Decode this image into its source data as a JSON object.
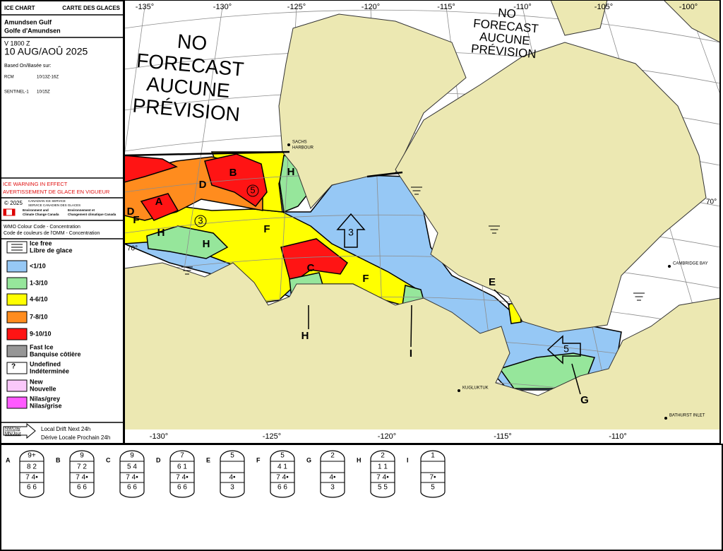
{
  "header": {
    "title_en": "ICE CHART",
    "title_fr": "CARTE DES GLACES",
    "region_en": "Amundsen Gulf",
    "region_fr": "Golfe d'Amundsen",
    "valid": "V 1800 Z",
    "date": "10 AUG/AOÛ 2025",
    "based_on": "Based On/Basée sur:",
    "sources": [
      [
        "RCM",
        "10/13Z-16Z"
      ],
      [
        "SENTINEL-1",
        "10/15Z"
      ]
    ]
  },
  "warning": [
    "ICE WARNING IN EFFECT",
    "AVERTISSEMENT DE GLACE EN VIGUEUR"
  ],
  "credits": {
    "copyright": "© 2025",
    "service": [
      "CANADIAN ICE SERVICE",
      "SERVICE CANADIEN DES GLACES"
    ],
    "department_en": [
      "Environment and",
      "Climate Change Canada"
    ],
    "department_fr": [
      "Environnement et",
      "Changement climatique Canada"
    ]
  },
  "colour_code": [
    "WMO Colour Code - Concentration",
    "Code de couleurs de l'OMM - Concentration"
  ],
  "legend": [
    {
      "label": [
        "Ice free",
        "Libre de glace"
      ],
      "color": "#ffffff"
    },
    {
      "label": [
        "<1/10"
      ],
      "color": "#96c8f5"
    },
    {
      "label": [
        "1-3/10"
      ],
      "color": "#96e69b"
    },
    {
      "label": [
        "4-6/10"
      ],
      "color": "#ffff00"
    },
    {
      "label": [
        "7-8/10"
      ],
      "color": "#ff8c1e"
    },
    {
      "label": [
        "9-10/10"
      ],
      "color": "#ff1414"
    },
    {
      "label": [
        "Fast Ice",
        "Banquise côtière"
      ],
      "color": "#969696"
    },
    {
      "label": [
        "Undefined",
        "Indéterminée"
      ],
      "color": "#ffffff",
      "symbol": "?"
    },
    {
      "label": [
        "New",
        "Nouvelle"
      ],
      "color": "#fac8fa"
    },
    {
      "label": [
        "Nilas/grey",
        "Nilas/grise"
      ],
      "color": "#ff5aff"
    }
  ],
  "drift_legend": {
    "unit": [
      "NM/Day",
      "MN/Jour"
    ],
    "label": [
      "Local Drift Next 24h",
      "Dérive Locale Prochain 24h"
    ]
  },
  "map": {
    "top_longitudes": [
      "-135°",
      "-130°",
      "-125°",
      "-120°",
      "-115°",
      "-110°",
      "-105°",
      "-100°"
    ],
    "bottom_longitudes": [
      "-130°",
      "-125°",
      "-120°",
      "-115°",
      "-110°"
    ],
    "latitudes": [
      "70°",
      "70°"
    ],
    "places": [
      [
        "SACHS",
        "HARBOUR"
      ],
      [
        "CAMBRIDGE BAY"
      ],
      [
        "KUGLUKTUK"
      ],
      [
        "BATHURST INLET"
      ]
    ],
    "no_forecast": [
      [
        "NO",
        "FORECAST",
        "AUCUNE",
        "PRÉVISION"
      ],
      [
        "NO",
        "FORECAST",
        "AUCUNE",
        "PRÉVISION"
      ]
    ],
    "region_labels": [
      "A",
      "B",
      "D",
      "D",
      "F",
      "H",
      "H",
      "F",
      "H",
      "C",
      "F",
      "H",
      "I",
      "E",
      "G"
    ],
    "area_numbers": [
      "5",
      "3"
    ],
    "drift_arrows": [
      "3",
      "5"
    ]
  },
  "egg_codes": [
    {
      "label": "A",
      "rows": [
        "9+",
        "8 2",
        "7 4•",
        "6 6"
      ]
    },
    {
      "label": "B",
      "rows": [
        "9",
        "7 2",
        "7 4•",
        "6 6"
      ]
    },
    {
      "label": "C",
      "rows": [
        "9",
        "5 4",
        "7 4•",
        "6 6"
      ]
    },
    {
      "label": "D",
      "rows": [
        "7",
        "6 1",
        "7 4•",
        "6 6"
      ]
    },
    {
      "label": "E",
      "rows": [
        "5",
        "4•",
        "3"
      ]
    },
    {
      "label": "F",
      "rows": [
        "5",
        "4 1",
        "7 4•",
        "6 6"
      ]
    },
    {
      "label": "G",
      "rows": [
        "2",
        "4•",
        "3"
      ]
    },
    {
      "label": "H",
      "rows": [
        "2",
        "1 1",
        "7 4•",
        "5 5"
      ]
    },
    {
      "label": "I",
      "rows": [
        "1",
        "7•",
        "5"
      ]
    }
  ]
}
